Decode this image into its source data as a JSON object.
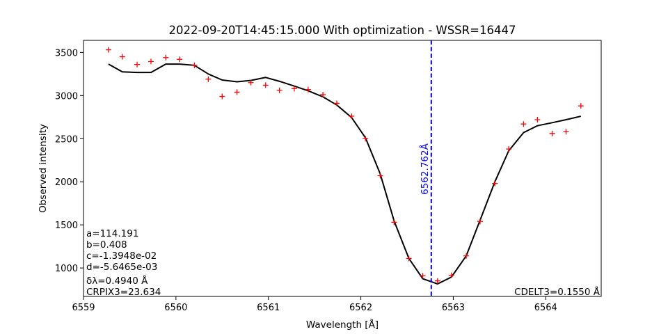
{
  "chart_data": {
    "type": "line",
    "title": "2022-09-20T14:45:15.000 With optimization - WSSR=16447",
    "xlabel": "Wavelength [Å]",
    "ylabel": "Observed intensity",
    "xlim": [
      6559.0,
      6564.6
    ],
    "ylim": [
      670,
      3640
    ],
    "grid": false,
    "x_ticks": [
      6559,
      6560,
      6561,
      6562,
      6563,
      6564
    ],
    "y_ticks": [
      1000,
      1500,
      2000,
      2500,
      3000,
      3500
    ],
    "observed": {
      "marker": "+",
      "color": "#ff0000",
      "x": [
        6559.27,
        6559.42,
        6559.58,
        6559.73,
        6559.89,
        6560.04,
        6560.2,
        6560.35,
        6560.5,
        6560.66,
        6560.81,
        6560.97,
        6561.12,
        6561.28,
        6561.43,
        6561.59,
        6561.74,
        6561.9,
        6562.05,
        6562.21,
        6562.36,
        6562.52,
        6562.67,
        6562.83,
        6562.98,
        6563.14,
        6563.29,
        6563.45,
        6563.6,
        6563.76,
        6563.91,
        6564.07,
        6564.22,
        6564.38
      ],
      "y": [
        3530,
        3450,
        3360,
        3395,
        3440,
        3420,
        3350,
        3190,
        2990,
        3040,
        3150,
        3120,
        3060,
        3080,
        3070,
        3010,
        2910,
        2760,
        2500,
        2070,
        1530,
        1110,
        910,
        850,
        915,
        1140,
        1540,
        1980,
        2380,
        2670,
        2720,
        2560,
        2580,
        2880
      ]
    },
    "model": {
      "color": "#000000",
      "x": [
        6559.27,
        6559.42,
        6559.58,
        6559.73,
        6559.89,
        6560.04,
        6560.2,
        6560.35,
        6560.5,
        6560.66,
        6560.81,
        6560.97,
        6561.12,
        6561.28,
        6561.43,
        6561.59,
        6561.74,
        6561.9,
        6562.05,
        6562.21,
        6562.36,
        6562.52,
        6562.67,
        6562.83,
        6562.98,
        6563.14,
        6563.29,
        6563.45,
        6563.6,
        6563.76,
        6563.91,
        6564.07,
        6564.22,
        6564.38
      ],
      "y": [
        3365,
        3275,
        3268,
        3268,
        3365,
        3365,
        3350,
        3250,
        3180,
        3160,
        3175,
        3210,
        3165,
        3110,
        3055,
        2985,
        2890,
        2745,
        2510,
        2090,
        1545,
        1110,
        875,
        815,
        895,
        1140,
        1555,
        2000,
        2360,
        2570,
        2650,
        2685,
        2720,
        2760
      ]
    },
    "center_line": {
      "x": 6562.762,
      "label": "6562.762Å",
      "color": "#0000ff",
      "style": "dashed"
    },
    "annotations": {
      "left": [
        "a=114.191",
        "b=0.408",
        "c=-1.3948e-02",
        "d=-5.6465e-03",
        "δλ=0.4940 Å",
        "CRPIX3=23.634"
      ],
      "right": "CDELT3=0.1550 Å"
    }
  }
}
